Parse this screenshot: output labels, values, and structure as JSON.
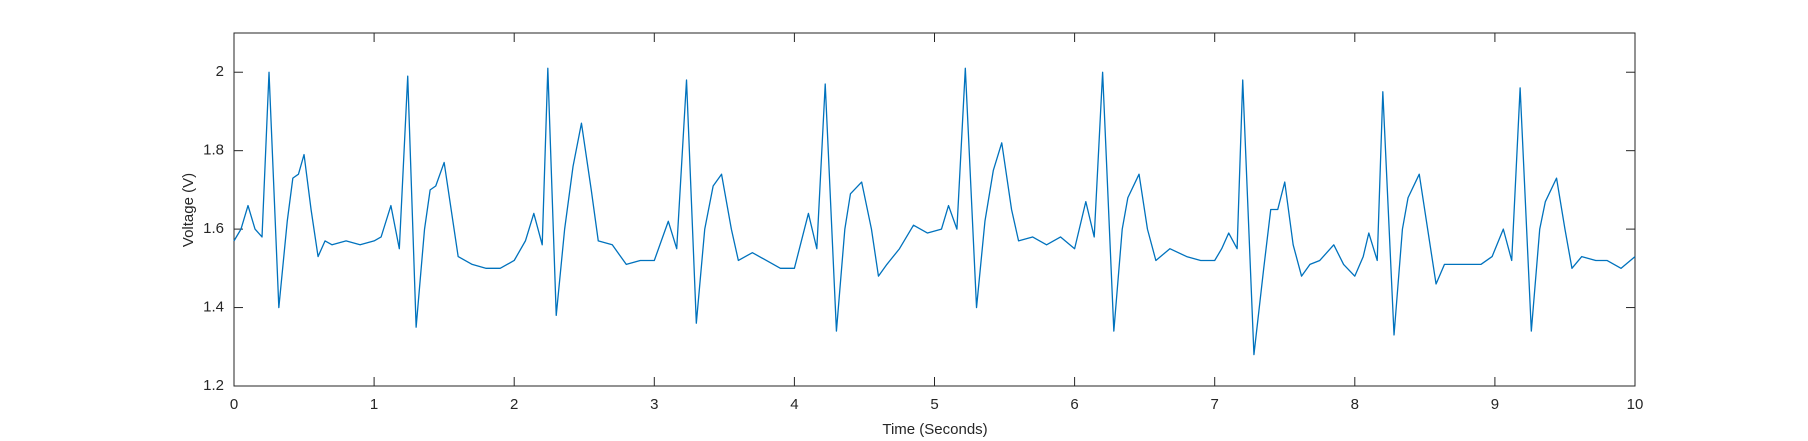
{
  "chart_data": {
    "type": "line",
    "x_label": "Time (Seconds)",
    "y_label": "Voltage (V)",
    "xlim": [
      0,
      10
    ],
    "xticks": [
      0,
      1,
      2,
      3,
      4,
      5,
      6,
      7,
      8,
      9,
      10
    ],
    "ylim": [
      1.2,
      2.1
    ],
    "yticks": [
      1.2,
      1.4,
      1.6,
      1.8,
      2
    ],
    "series": [
      {
        "color": "#0072bd",
        "x": [
          0,
          0.05,
          0.1,
          0.15,
          0.2,
          0.25,
          0.32,
          0.38,
          0.42,
          0.46,
          0.5,
          0.55,
          0.6,
          0.65,
          0.7,
          0.8,
          0.9,
          1.0,
          1.05,
          1.12,
          1.18,
          1.24,
          1.3,
          1.36,
          1.4,
          1.44,
          1.5,
          1.55,
          1.6,
          1.7,
          1.8,
          1.9,
          2.0,
          2.08,
          2.14,
          2.2,
          2.24,
          2.3,
          2.36,
          2.42,
          2.48,
          2.55,
          2.6,
          2.7,
          2.8,
          2.9,
          3.0,
          3.1,
          3.16,
          3.23,
          3.3,
          3.36,
          3.42,
          3.48,
          3.55,
          3.6,
          3.7,
          3.8,
          3.9,
          4.0,
          4.1,
          4.16,
          4.22,
          4.3,
          4.36,
          4.4,
          4.48,
          4.55,
          4.6,
          4.66,
          4.75,
          4.85,
          4.95,
          5.05,
          5.1,
          5.16,
          5.22,
          5.3,
          5.36,
          5.42,
          5.48,
          5.55,
          5.6,
          5.7,
          5.8,
          5.9,
          6.0,
          6.08,
          6.14,
          6.2,
          6.28,
          6.34,
          6.38,
          6.46,
          6.52,
          6.58,
          6.68,
          6.8,
          6.9,
          7.0,
          7.05,
          7.1,
          7.16,
          7.2,
          7.28,
          7.35,
          7.4,
          7.45,
          7.5,
          7.56,
          7.62,
          7.68,
          7.75,
          7.85,
          7.92,
          8.0,
          8.06,
          8.1,
          8.16,
          8.2,
          8.28,
          8.34,
          8.38,
          8.46,
          8.52,
          8.58,
          8.64,
          8.7,
          8.8,
          8.9,
          8.98,
          9.06,
          9.12,
          9.18,
          9.26,
          9.32,
          9.36,
          9.44,
          9.5,
          9.55,
          9.62,
          9.72,
          9.8,
          9.9,
          10.0
        ],
        "values": [
          1.57,
          1.6,
          1.66,
          1.6,
          1.58,
          2.0,
          1.4,
          1.62,
          1.73,
          1.74,
          1.79,
          1.65,
          1.53,
          1.57,
          1.56,
          1.57,
          1.56,
          1.57,
          1.58,
          1.66,
          1.55,
          1.99,
          1.35,
          1.6,
          1.7,
          1.71,
          1.77,
          1.65,
          1.53,
          1.51,
          1.5,
          1.5,
          1.52,
          1.57,
          1.64,
          1.56,
          2.01,
          1.38,
          1.6,
          1.76,
          1.87,
          1.7,
          1.57,
          1.56,
          1.51,
          1.52,
          1.52,
          1.62,
          1.55,
          1.98,
          1.36,
          1.6,
          1.71,
          1.74,
          1.6,
          1.52,
          1.54,
          1.52,
          1.5,
          1.5,
          1.64,
          1.55,
          1.97,
          1.34,
          1.6,
          1.69,
          1.72,
          1.6,
          1.48,
          1.51,
          1.55,
          1.61,
          1.59,
          1.6,
          1.66,
          1.6,
          2.01,
          1.4,
          1.62,
          1.75,
          1.82,
          1.65,
          1.57,
          1.58,
          1.56,
          1.58,
          1.55,
          1.67,
          1.58,
          2.0,
          1.34,
          1.6,
          1.68,
          1.74,
          1.6,
          1.52,
          1.55,
          1.53,
          1.52,
          1.52,
          1.55,
          1.59,
          1.55,
          1.98,
          1.28,
          1.5,
          1.65,
          1.65,
          1.72,
          1.56,
          1.48,
          1.51,
          1.52,
          1.56,
          1.51,
          1.48,
          1.53,
          1.59,
          1.52,
          1.95,
          1.33,
          1.6,
          1.68,
          1.74,
          1.6,
          1.46,
          1.51,
          1.51,
          1.51,
          1.51,
          1.53,
          1.6,
          1.52,
          1.96,
          1.34,
          1.6,
          1.67,
          1.73,
          1.6,
          1.5,
          1.53,
          1.52,
          1.52,
          1.5,
          1.53
        ]
      }
    ]
  }
}
